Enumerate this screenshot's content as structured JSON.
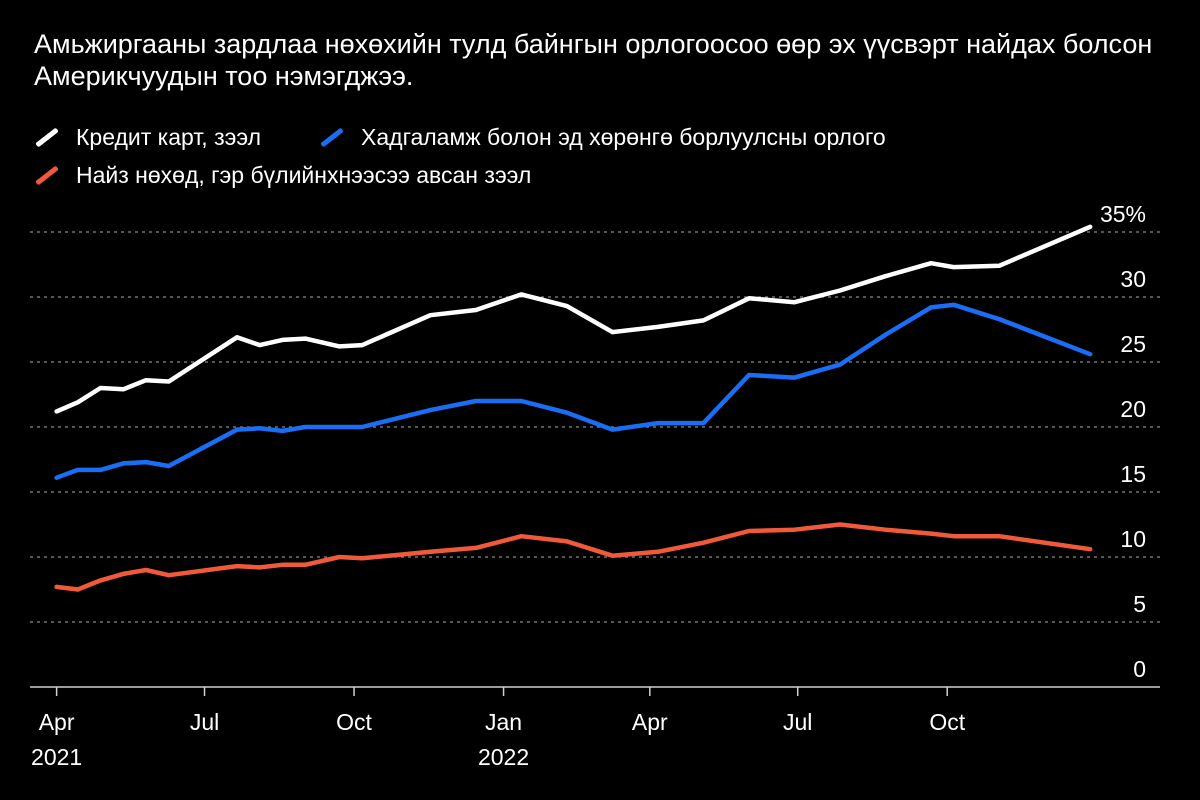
{
  "subtitle": "Амьжиргааны зардлаа нөхөхийн тулд байнгын орлогоосоо өөр эх үүсвэрт найдах болсон Америкчуудын тоо нэмэгджээ.",
  "chart_data": {
    "type": "line",
    "title": "",
    "subtitle": "Амьжиргааны зардлаа нөхөхийн тулд байнгын орлогоосоо өөр эх үүсвэрт найдах болсон Америкчуудын тоо нэмэгджээ.",
    "xlabel": "",
    "ylabel": "",
    "ylim": [
      0,
      35
    ],
    "yticks": [
      0,
      5,
      10,
      15,
      20,
      25,
      30,
      35
    ],
    "ytick_labels": [
      "0",
      "5",
      "10",
      "15",
      "20",
      "25",
      "30",
      "35%"
    ],
    "xlim": [
      "2021-03-31",
      "2023-01-03"
    ],
    "xticks": [
      {
        "date": "2021-04-01",
        "label": "Apr",
        "sublabel": "2021"
      },
      {
        "date": "2021-07-01",
        "label": "Jul",
        "sublabel": ""
      },
      {
        "date": "2021-10-01",
        "label": "Oct",
        "sublabel": ""
      },
      {
        "date": "2022-01-01",
        "label": "Jan",
        "sublabel": "2022"
      },
      {
        "date": "2022-04-01",
        "label": "Apr",
        "sublabel": ""
      },
      {
        "date": "2022-07-01",
        "label": "Jul",
        "sublabel": ""
      },
      {
        "date": "2022-10-01",
        "label": "Oct",
        "sublabel": ""
      }
    ],
    "grid": true,
    "legend_position": "top-left",
    "series": [
      {
        "name": "Кредит карт, зээл",
        "color": "#ffffff",
        "points": [
          [
            "2021-04-01",
            21.2
          ],
          [
            "2021-04-14",
            21.9
          ],
          [
            "2021-04-28",
            23.0
          ],
          [
            "2021-05-12",
            22.9
          ],
          [
            "2021-05-26",
            23.6
          ],
          [
            "2021-06-09",
            23.5
          ],
          [
            "2021-07-21",
            26.9
          ],
          [
            "2021-08-04",
            26.3
          ],
          [
            "2021-08-18",
            26.7
          ],
          [
            "2021-09-01",
            26.8
          ],
          [
            "2021-09-22",
            26.2
          ],
          [
            "2021-10-06",
            26.3
          ],
          [
            "2021-11-17",
            28.6
          ],
          [
            "2021-12-15",
            29.0
          ],
          [
            "2022-01-12",
            30.2
          ],
          [
            "2022-02-09",
            29.3
          ],
          [
            "2022-03-09",
            27.3
          ],
          [
            "2022-04-06",
            27.7
          ],
          [
            "2022-05-04",
            28.2
          ],
          [
            "2022-06-01",
            29.9
          ],
          [
            "2022-06-29",
            29.6
          ],
          [
            "2022-07-27",
            30.5
          ],
          [
            "2022-08-24",
            31.6
          ],
          [
            "2022-09-21",
            32.6
          ],
          [
            "2022-10-05",
            32.3
          ],
          [
            "2022-11-02",
            32.4
          ],
          [
            "2022-12-28",
            35.4
          ]
        ]
      },
      {
        "name": "Хадгаламж болон эд хөрөнгө борлуулсны орлого",
        "color": "#1a6ef5",
        "points": [
          [
            "2021-04-01",
            16.1
          ],
          [
            "2021-04-14",
            16.7
          ],
          [
            "2021-04-28",
            16.7
          ],
          [
            "2021-05-12",
            17.2
          ],
          [
            "2021-05-26",
            17.3
          ],
          [
            "2021-06-09",
            17.0
          ],
          [
            "2021-07-21",
            19.8
          ],
          [
            "2021-08-04",
            19.9
          ],
          [
            "2021-08-18",
            19.7
          ],
          [
            "2021-09-01",
            20.0
          ],
          [
            "2021-09-22",
            20.0
          ],
          [
            "2021-10-06",
            20.0
          ],
          [
            "2021-11-17",
            21.3
          ],
          [
            "2021-12-15",
            22.0
          ],
          [
            "2022-01-12",
            22.0
          ],
          [
            "2022-02-09",
            21.1
          ],
          [
            "2022-03-09",
            19.8
          ],
          [
            "2022-04-06",
            20.3
          ],
          [
            "2022-05-04",
            20.3
          ],
          [
            "2022-06-01",
            24.0
          ],
          [
            "2022-06-29",
            23.8
          ],
          [
            "2022-07-27",
            24.8
          ],
          [
            "2022-08-24",
            27.1
          ],
          [
            "2022-09-21",
            29.2
          ],
          [
            "2022-10-05",
            29.4
          ],
          [
            "2022-11-02",
            28.3
          ],
          [
            "2022-12-28",
            25.6
          ]
        ]
      },
      {
        "name": "Найз нөхөд, гэр бүлийнхнээсээ авсан зээл",
        "color": "#f05a3a",
        "points": [
          [
            "2021-04-01",
            7.7
          ],
          [
            "2021-04-14",
            7.5
          ],
          [
            "2021-04-28",
            8.2
          ],
          [
            "2021-05-12",
            8.7
          ],
          [
            "2021-05-26",
            9.0
          ],
          [
            "2021-06-09",
            8.6
          ],
          [
            "2021-07-21",
            9.3
          ],
          [
            "2021-08-04",
            9.2
          ],
          [
            "2021-08-18",
            9.4
          ],
          [
            "2021-09-01",
            9.4
          ],
          [
            "2021-09-22",
            10.0
          ],
          [
            "2021-10-06",
            9.9
          ],
          [
            "2021-11-17",
            10.4
          ],
          [
            "2021-12-15",
            10.7
          ],
          [
            "2022-01-12",
            11.6
          ],
          [
            "2022-02-09",
            11.2
          ],
          [
            "2022-03-09",
            10.1
          ],
          [
            "2022-04-06",
            10.4
          ],
          [
            "2022-05-04",
            11.1
          ],
          [
            "2022-06-01",
            12.0
          ],
          [
            "2022-06-29",
            12.1
          ],
          [
            "2022-07-27",
            12.5
          ],
          [
            "2022-08-24",
            12.1
          ],
          [
            "2022-09-21",
            11.8
          ],
          [
            "2022-10-05",
            11.6
          ],
          [
            "2022-11-02",
            11.6
          ],
          [
            "2022-12-28",
            10.6
          ]
        ]
      }
    ]
  }
}
